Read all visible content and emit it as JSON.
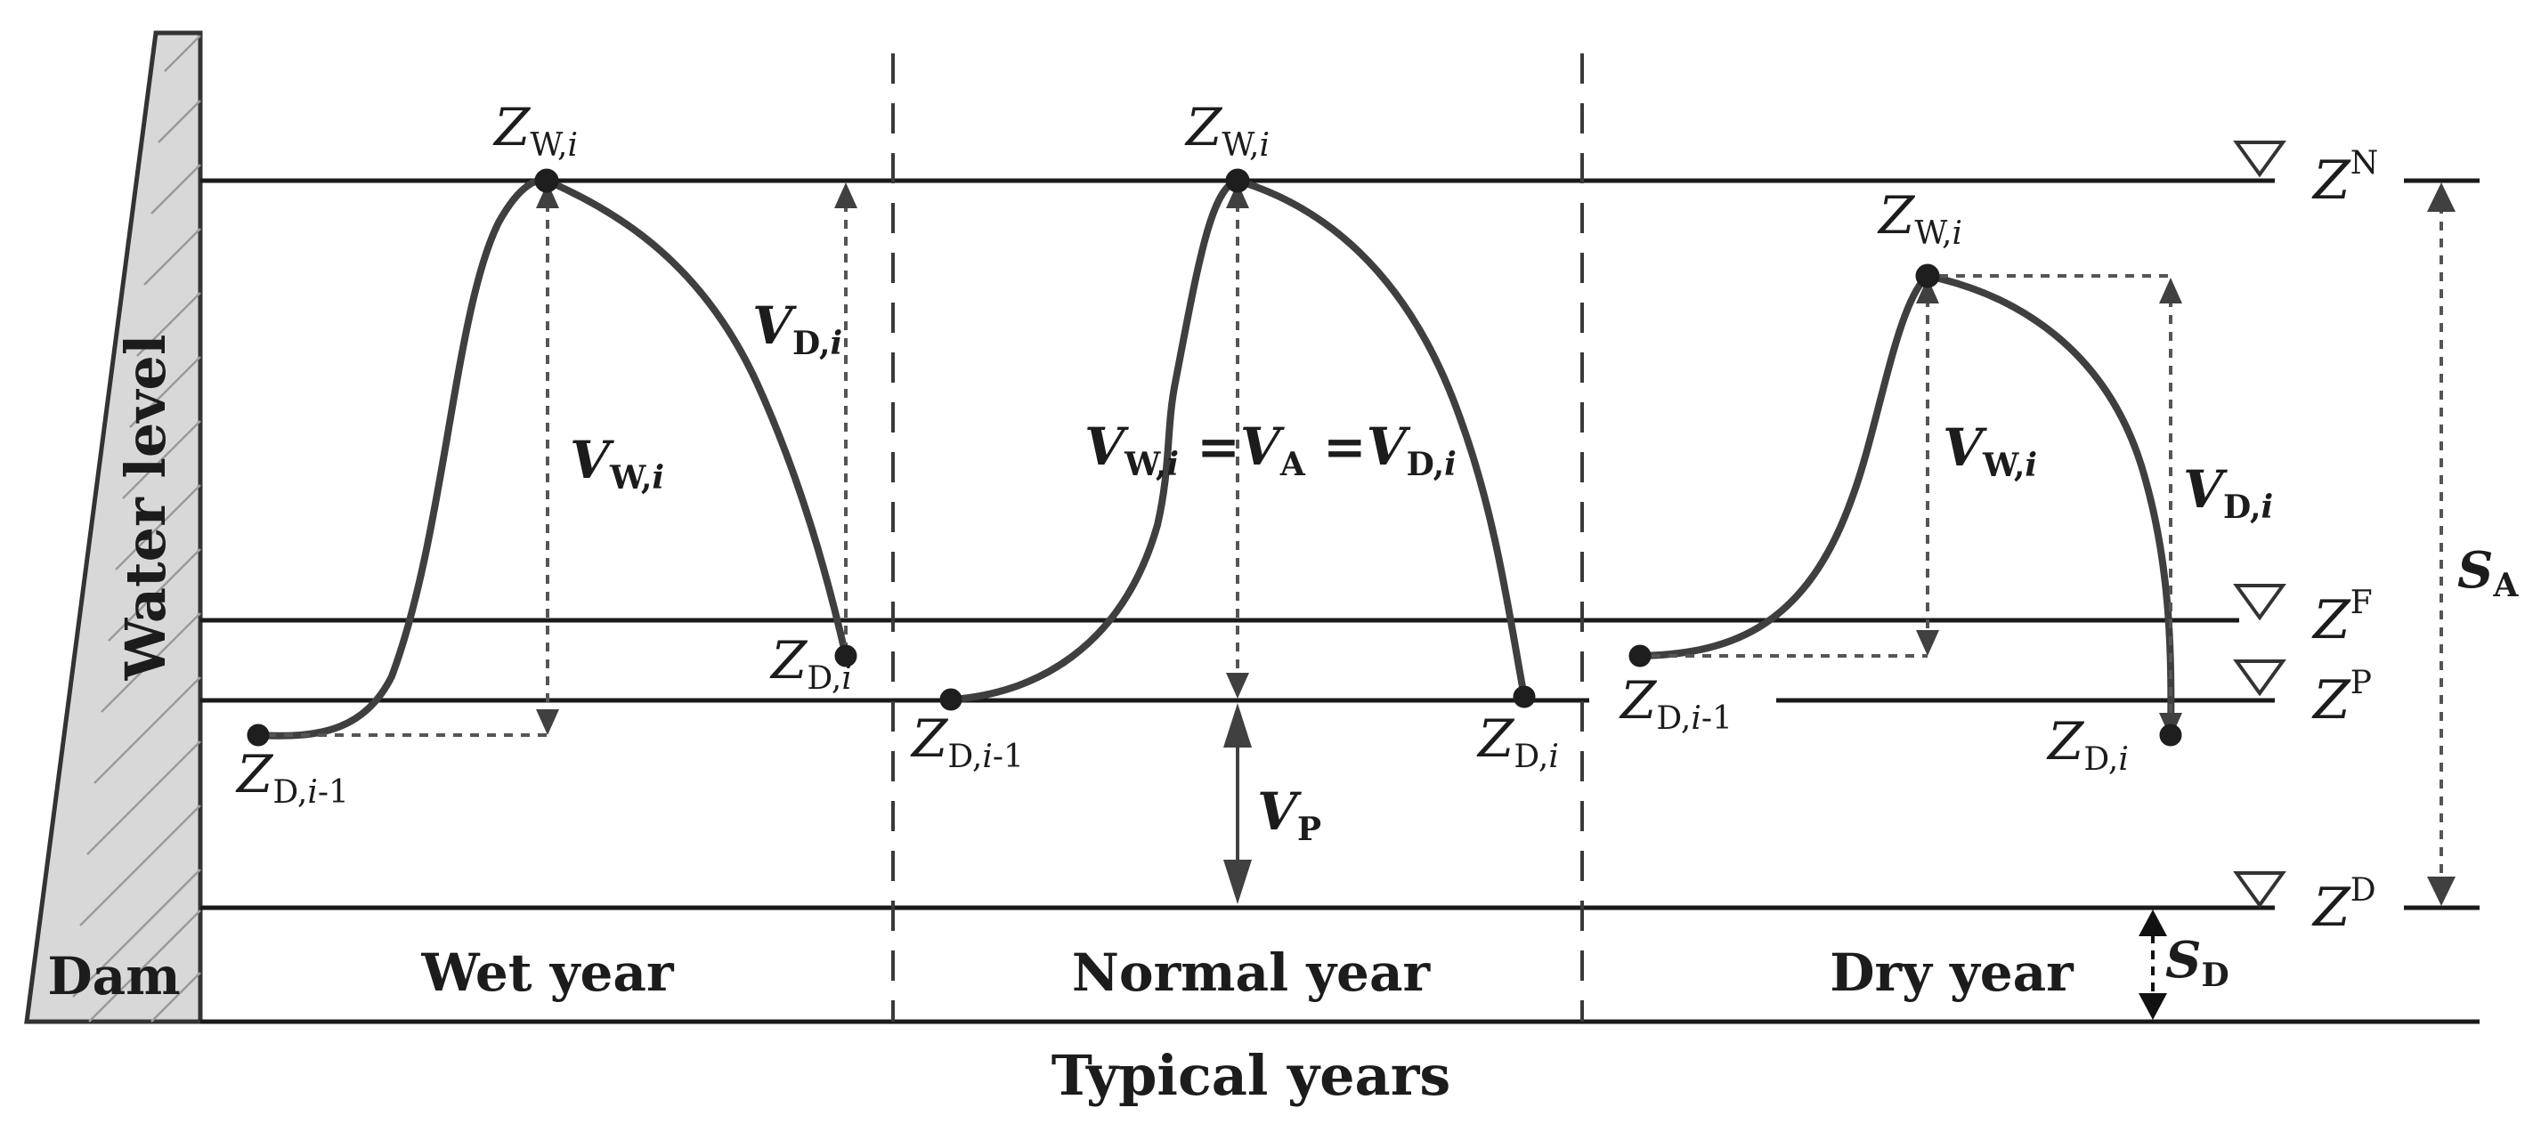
{
  "colors": {
    "curve": "#3f3f3f",
    "dam_fill": "#d8d8d8",
    "line": "#1a1a1a"
  },
  "axis": {
    "y_label": "Water level",
    "x_label": "Typical years"
  },
  "dam_label": "Dam",
  "sections": [
    {
      "label": "Wet year"
    },
    {
      "label": "Normal year"
    },
    {
      "label": "Dry year"
    }
  ],
  "levels": {
    "normal": {
      "base": "Z",
      "sup": "N"
    },
    "flood": {
      "base": "Z",
      "sup": "F"
    },
    "p": {
      "base": "Z",
      "sup": "P"
    },
    "dead": {
      "base": "Z",
      "sup": "D"
    }
  },
  "storages": {
    "active": {
      "base": "S",
      "sub": "A"
    },
    "dead": {
      "base": "S",
      "sub": "D"
    }
  },
  "labels": {
    "zw_i": {
      "base": "Z",
      "sub": "W,",
      "idx": "i"
    },
    "zd_i": {
      "base": "Z",
      "sub": "D,",
      "idx": "i"
    },
    "zd_prev": {
      "base": "Z",
      "sub": "D,",
      "idx": "i",
      "tail": "-1"
    },
    "vw_i": {
      "base": "V",
      "sub": "W,",
      "idx": "i"
    },
    "vd_i": {
      "base": "V",
      "sub": "D,",
      "idx": "i"
    },
    "vp": {
      "base": "V",
      "sub": "P"
    },
    "normal_eq": {
      "lhs_sub": "W,",
      "idx": "i",
      "mid_sub": "A",
      "rhs_sub": "D,",
      "eq": "="
    }
  }
}
